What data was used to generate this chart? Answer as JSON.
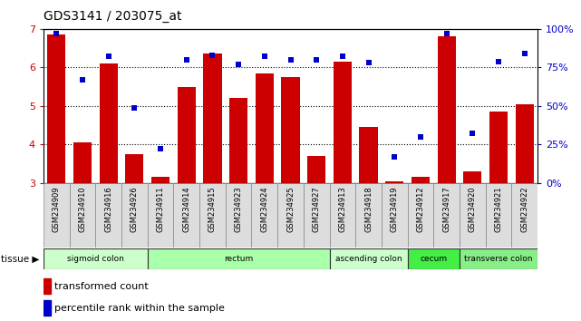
{
  "title": "GDS3141 / 203075_at",
  "samples": [
    "GSM234909",
    "GSM234910",
    "GSM234916",
    "GSM234926",
    "GSM234911",
    "GSM234914",
    "GSM234915",
    "GSM234923",
    "GSM234924",
    "GSM234925",
    "GSM234927",
    "GSM234913",
    "GSM234918",
    "GSM234919",
    "GSM234912",
    "GSM234917",
    "GSM234920",
    "GSM234921",
    "GSM234922"
  ],
  "bar_values": [
    6.85,
    4.05,
    6.1,
    3.75,
    3.15,
    5.5,
    6.35,
    5.2,
    5.85,
    5.75,
    3.7,
    6.15,
    4.45,
    3.05,
    3.15,
    6.8,
    3.3,
    4.85,
    5.05
  ],
  "dot_values": [
    97,
    67,
    82,
    49,
    22,
    80,
    83,
    77,
    82,
    80,
    80,
    82,
    78,
    17,
    30,
    97,
    32,
    79,
    84
  ],
  "ylim_left": [
    3,
    7
  ],
  "ylim_right": [
    0,
    100
  ],
  "yticks_left": [
    3,
    4,
    5,
    6,
    7
  ],
  "yticks_right": [
    0,
    25,
    50,
    75,
    100
  ],
  "ytick_right_labels": [
    "0%",
    "25%",
    "50%",
    "75%",
    "100%"
  ],
  "bar_color": "#cc0000",
  "dot_color": "#0000cc",
  "bg_color": "#ffffff",
  "tissue_groups": [
    {
      "label": "sigmoid colon",
      "start": 0,
      "end": 3,
      "color": "#ccffcc"
    },
    {
      "label": "rectum",
      "start": 4,
      "end": 10,
      "color": "#aaffaa"
    },
    {
      "label": "ascending colon",
      "start": 11,
      "end": 13,
      "color": "#ccffcc"
    },
    {
      "label": "cecum",
      "start": 14,
      "end": 15,
      "color": "#44ee44"
    },
    {
      "label": "transverse colon",
      "start": 16,
      "end": 18,
      "color": "#88ee88"
    }
  ],
  "tissue_label": "tissue",
  "legend_bar_label": "transformed count",
  "legend_dot_label": "percentile rank within the sample",
  "xticklabel_fontsize": 6.0,
  "title_fontsize": 10
}
